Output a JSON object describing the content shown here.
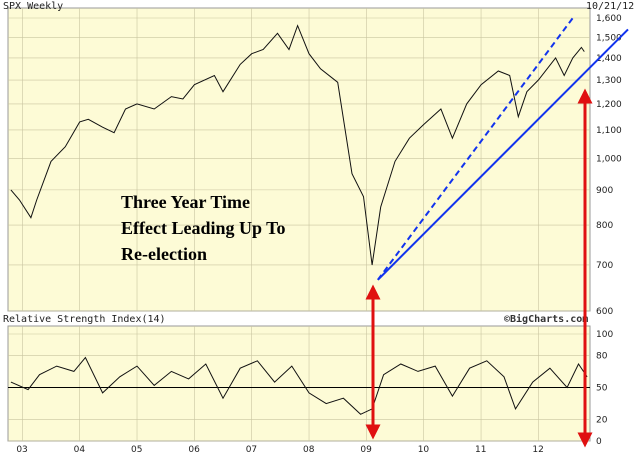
{
  "chart_data": [
    {
      "type": "line",
      "title": "SPX Weekly",
      "date_label": "10/21/12",
      "ylim": [
        600,
        1600
      ],
      "y_ticks": [
        "600",
        "700",
        "800",
        "900",
        "1,000",
        "1,100",
        "1,200",
        "1,300",
        "1,400",
        "1,500",
        "1,600"
      ],
      "y_tick_values": [
        600,
        700,
        800,
        900,
        1000,
        1100,
        1200,
        1300,
        1400,
        1500,
        1600
      ],
      "x_ticks": [
        "03",
        "04",
        "05",
        "06",
        "07",
        "08",
        "09",
        "10",
        "11",
        "12"
      ],
      "x_tick_values": [
        2003,
        2004,
        2005,
        2006,
        2007,
        2008,
        2009,
        2010,
        2011,
        2012
      ],
      "xlim": [
        2002.75,
        2012.9
      ],
      "grid": true,
      "series": [
        {
          "values_x": [
            2002.8,
            2002.95,
            2003.15,
            2003.25,
            2003.5,
            2003.75,
            2004.0,
            2004.15,
            2004.4,
            2004.6,
            2004.8,
            2005.0,
            2005.3,
            2005.6,
            2005.8,
            2006.0,
            2006.35,
            2006.5,
            2006.8,
            2007.0,
            2007.2,
            2007.45,
            2007.65,
            2007.8,
            2008.0,
            2008.2,
            2008.5,
            2008.75,
            2008.95,
            2009.1,
            2009.25,
            2009.5,
            2009.75,
            2010.0,
            2010.3,
            2010.5,
            2010.75,
            2011.0,
            2011.3,
            2011.5,
            2011.65,
            2011.8,
            2012.0,
            2012.3,
            2012.45,
            2012.6,
            2012.75,
            2012.8
          ],
          "values_y": [
            900,
            870,
            820,
            870,
            990,
            1040,
            1130,
            1140,
            1110,
            1090,
            1180,
            1200,
            1180,
            1230,
            1220,
            1280,
            1320,
            1250,
            1370,
            1420,
            1440,
            1520,
            1440,
            1560,
            1420,
            1350,
            1290,
            950,
            880,
            700,
            850,
            990,
            1070,
            1120,
            1180,
            1070,
            1200,
            1280,
            1340,
            1320,
            1150,
            1250,
            1300,
            1400,
            1320,
            1400,
            1450,
            1430
          ]
        }
      ],
      "trendlines": [
        {
          "x": [
            2009.2,
            2012.9
          ],
          "y": [
            666,
            1440
          ]
        },
        {
          "x": [
            2009.2,
            2012.6
          ],
          "y": [
            666,
            1600
          ]
        }
      ],
      "annotation": [
        "Three Year Time",
        "Effect Leading Up To",
        "Re-election"
      ]
    },
    {
      "type": "line",
      "title": "Relative Strength Index(14)",
      "watermark": "©BigCharts.com",
      "ylim": [
        0,
        100
      ],
      "y_ticks": [
        "0",
        "20",
        "50",
        "80",
        "100"
      ],
      "y_tick_values": [
        0,
        20,
        50,
        80,
        100
      ],
      "reference_line": 50,
      "x_ticks": [
        "03",
        "04",
        "05",
        "06",
        "07",
        "08",
        "09",
        "10",
        "11",
        "12"
      ],
      "x_tick_values": [
        2003,
        2004,
        2005,
        2006,
        2007,
        2008,
        2009,
        2010,
        2011,
        2012
      ],
      "series": [
        {
          "values_x": [
            2002.8,
            2003.1,
            2003.3,
            2003.6,
            2003.9,
            2004.1,
            2004.4,
            2004.7,
            2005.0,
            2005.3,
            2005.6,
            2005.9,
            2006.2,
            2006.5,
            2006.8,
            2007.1,
            2007.4,
            2007.7,
            2008.0,
            2008.3,
            2008.6,
            2008.9,
            2009.1,
            2009.3,
            2009.6,
            2009.9,
            2010.2,
            2010.5,
            2010.8,
            2011.1,
            2011.4,
            2011.6,
            2011.9,
            2012.2,
            2012.5,
            2012.7,
            2012.85
          ],
          "values_y": [
            55,
            48,
            62,
            70,
            65,
            78,
            45,
            60,
            70,
            52,
            65,
            58,
            72,
            40,
            68,
            75,
            55,
            70,
            45,
            35,
            40,
            25,
            30,
            62,
            72,
            65,
            70,
            42,
            68,
            75,
            60,
            30,
            55,
            68,
            50,
            72,
            60
          ]
        }
      ]
    }
  ],
  "colors": {
    "plot_bg": "#fdfbd6",
    "trend": "#1133ee",
    "arrow": "#e01010",
    "grid": "#c9c5a0"
  }
}
